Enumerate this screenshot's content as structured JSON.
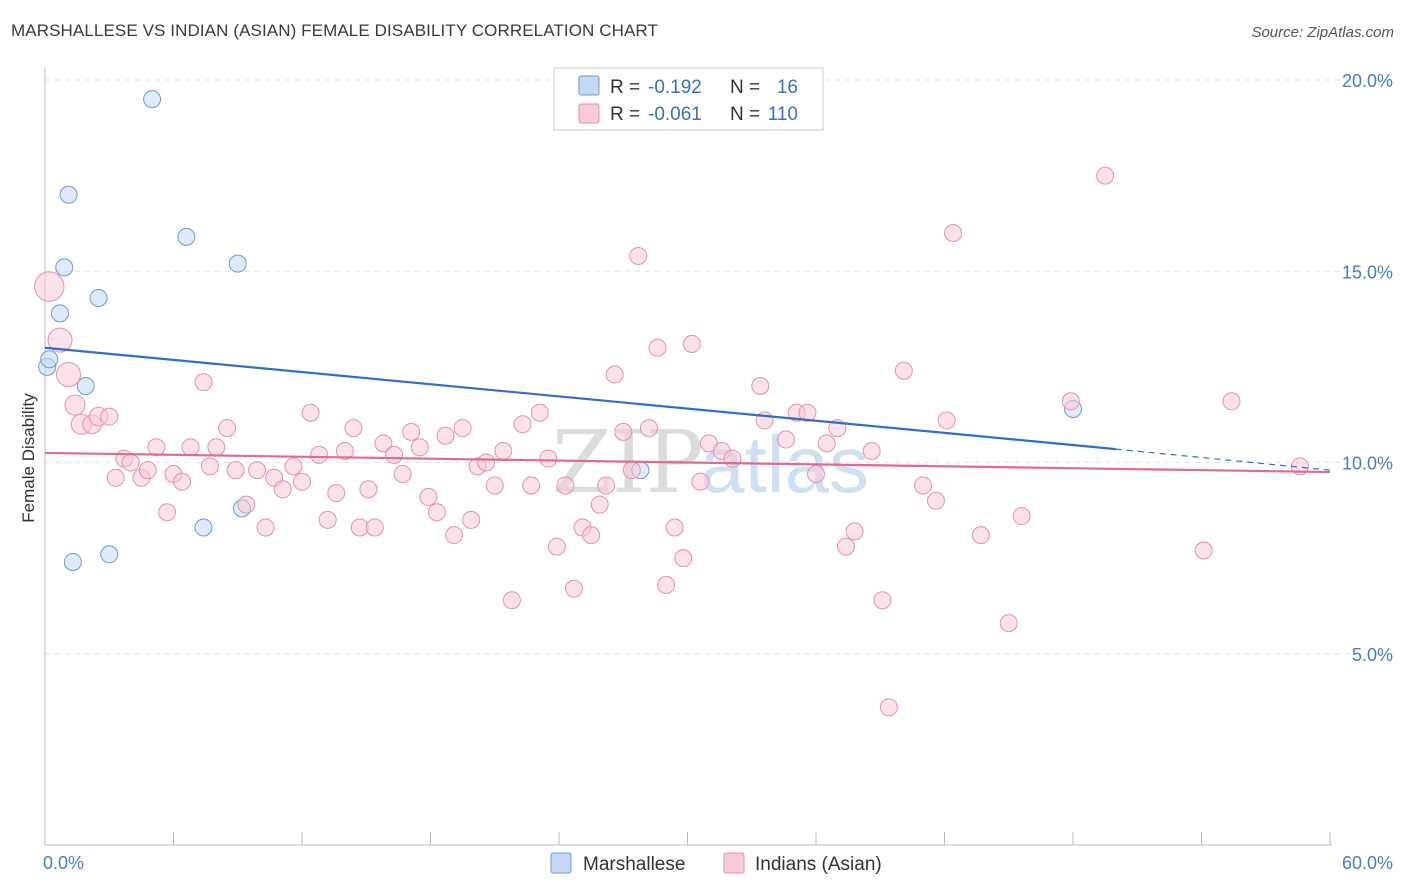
{
  "title": "MARSHALLESE VS INDIAN (ASIAN) FEMALE DISABILITY CORRELATION CHART",
  "source": "Source: ZipAtlas.com",
  "watermark": {
    "zip": "ZIP",
    "atlas": "atlas"
  },
  "colors": {
    "marshallese_fill": "#c4d8f3",
    "marshallese_stroke": "#6e9ad6",
    "marshallese_line": "#2e6fcc",
    "indian_fill": "#f8c9d7",
    "indian_stroke": "#e592ae",
    "indian_line": "#e06a95",
    "tick_label": "#4a7cc4",
    "grid": "#e2e2e2"
  },
  "legend": {
    "rows": [
      {
        "r_label": "R =",
        "r_value": "-0.192",
        "n_label": "N =",
        "n_value": "16"
      },
      {
        "r_label": "R =",
        "r_value": "-0.061",
        "n_label": "N =",
        "n_value": "110"
      }
    ]
  },
  "bottom_legend": [
    "Marshallese",
    "Indians (Asian)"
  ],
  "chart_data": {
    "type": "scatter",
    "title": "MARSHALLESE VS INDIAN (ASIAN) FEMALE DISABILITY CORRELATION CHART",
    "xlabel": "",
    "ylabel": "Female Disability",
    "xlim": [
      0,
      60
    ],
    "ylim": [
      0,
      21
    ],
    "x_tick_labels": [
      "0.0%",
      "60.0%"
    ],
    "y_ticks": [
      5,
      10,
      15,
      20
    ],
    "y_tick_labels": [
      "5.0%",
      "10.0%",
      "15.0%",
      "20.0%"
    ],
    "grid": true,
    "legend_position": "top-center",
    "series": [
      {
        "name": "Marshallese",
        "points": [
          [
            0.1,
            12.5,
            1
          ],
          [
            0.2,
            12.7,
            1
          ],
          [
            0.7,
            13.9,
            1
          ],
          [
            0.9,
            15.1,
            1
          ],
          [
            1.1,
            17.0,
            1
          ],
          [
            1.3,
            7.4,
            1
          ],
          [
            1.9,
            12.0,
            1
          ],
          [
            2.5,
            14.3,
            1
          ],
          [
            3.0,
            7.6,
            1
          ],
          [
            5.0,
            19.5,
            1
          ],
          [
            6.6,
            15.9,
            1
          ],
          [
            7.4,
            8.3,
            1
          ],
          [
            9.2,
            8.8,
            1
          ],
          [
            9.0,
            15.2,
            1
          ],
          [
            27.8,
            9.8,
            1
          ],
          [
            48.0,
            11.4,
            1
          ]
        ],
        "trend": {
          "x_start": 0,
          "y_start": 13.0,
          "x_end": 50,
          "y_end": 10.35,
          "dash_x_end": 60,
          "dash_y_end": 9.8
        }
      },
      {
        "name": "Indians (Asian)",
        "points": [
          [
            0.2,
            14.6,
            3
          ],
          [
            0.7,
            13.2,
            2
          ],
          [
            1.1,
            12.3,
            2
          ],
          [
            1.4,
            11.5,
            1.4
          ],
          [
            1.7,
            11.0,
            1.4
          ],
          [
            2.2,
            11.0,
            1.2
          ],
          [
            2.5,
            11.2,
            1.2
          ],
          [
            3.0,
            11.2,
            1
          ],
          [
            3.3,
            9.6,
            1
          ],
          [
            3.7,
            10.1,
            1
          ],
          [
            4.0,
            10.0,
            1
          ],
          [
            4.5,
            9.6,
            1
          ],
          [
            4.8,
            9.8,
            1
          ],
          [
            5.2,
            10.4,
            1
          ],
          [
            5.7,
            8.7,
            1
          ],
          [
            6.0,
            9.7,
            1
          ],
          [
            6.4,
            9.5,
            1
          ],
          [
            6.8,
            10.4,
            1
          ],
          [
            7.4,
            12.1,
            1
          ],
          [
            7.7,
            9.9,
            1
          ],
          [
            8.0,
            10.4,
            1
          ],
          [
            8.5,
            10.9,
            1
          ],
          [
            8.9,
            9.8,
            1
          ],
          [
            9.4,
            8.9,
            1
          ],
          [
            9.9,
            9.8,
            1
          ],
          [
            10.3,
            8.3,
            1
          ],
          [
            10.7,
            9.6,
            1
          ],
          [
            11.1,
            9.3,
            1
          ],
          [
            11.6,
            9.9,
            1
          ],
          [
            12.0,
            9.5,
            1
          ],
          [
            12.4,
            11.3,
            1
          ],
          [
            12.8,
            10.2,
            1
          ],
          [
            13.2,
            8.5,
            1
          ],
          [
            13.6,
            9.2,
            1
          ],
          [
            14.0,
            10.3,
            1
          ],
          [
            14.4,
            10.9,
            1
          ],
          [
            14.7,
            8.3,
            1
          ],
          [
            15.1,
            9.3,
            1
          ],
          [
            15.4,
            8.3,
            1
          ],
          [
            15.8,
            10.5,
            1
          ],
          [
            16.3,
            10.2,
            1
          ],
          [
            16.7,
            9.7,
            1
          ],
          [
            17.1,
            10.8,
            1
          ],
          [
            17.5,
            10.4,
            1
          ],
          [
            17.9,
            9.1,
            1
          ],
          [
            18.3,
            8.7,
            1
          ],
          [
            18.7,
            10.7,
            1
          ],
          [
            19.1,
            8.1,
            1
          ],
          [
            19.5,
            10.9,
            1
          ],
          [
            19.9,
            8.5,
            1
          ],
          [
            20.2,
            9.9,
            1
          ],
          [
            20.6,
            10.0,
            1
          ],
          [
            21.0,
            9.4,
            1
          ],
          [
            21.4,
            10.3,
            1
          ],
          [
            21.8,
            6.4,
            1
          ],
          [
            22.3,
            11.0,
            1
          ],
          [
            22.7,
            9.4,
            1
          ],
          [
            23.1,
            11.3,
            1
          ],
          [
            23.5,
            10.1,
            1
          ],
          [
            23.9,
            7.8,
            1
          ],
          [
            24.3,
            9.4,
            1
          ],
          [
            24.7,
            6.7,
            1
          ],
          [
            25.1,
            8.3,
            1
          ],
          [
            25.5,
            8.1,
            1
          ],
          [
            25.9,
            8.9,
            1
          ],
          [
            26.2,
            9.4,
            1
          ],
          [
            26.6,
            12.3,
            1
          ],
          [
            27.0,
            10.8,
            1
          ],
          [
            27.4,
            9.8,
            1
          ],
          [
            27.7,
            15.4,
            1
          ],
          [
            28.2,
            10.9,
            1
          ],
          [
            28.6,
            13.0,
            1
          ],
          [
            29.0,
            6.8,
            1
          ],
          [
            29.4,
            8.3,
            1
          ],
          [
            29.8,
            7.5,
            1
          ],
          [
            30.2,
            13.1,
            1
          ],
          [
            30.6,
            9.5,
            1
          ],
          [
            31.0,
            10.5,
            1
          ],
          [
            31.6,
            10.3,
            1
          ],
          [
            32.1,
            10.1,
            1
          ],
          [
            33.4,
            12.0,
            1
          ],
          [
            33.6,
            11.1,
            1
          ],
          [
            34.6,
            10.6,
            1
          ],
          [
            35.1,
            11.3,
            1
          ],
          [
            35.6,
            11.3,
            1
          ],
          [
            36.0,
            9.7,
            1
          ],
          [
            36.5,
            10.5,
            1
          ],
          [
            37.0,
            10.9,
            1
          ],
          [
            37.4,
            7.8,
            1
          ],
          [
            37.8,
            8.2,
            1
          ],
          [
            38.6,
            10.3,
            1
          ],
          [
            39.1,
            6.4,
            1
          ],
          [
            39.4,
            3.6,
            1
          ],
          [
            40.1,
            12.4,
            1
          ],
          [
            41.0,
            9.4,
            1
          ],
          [
            41.6,
            9.0,
            1
          ],
          [
            42.1,
            11.1,
            1
          ],
          [
            42.4,
            16.0,
            1
          ],
          [
            43.7,
            8.1,
            1
          ],
          [
            45.0,
            5.8,
            1
          ],
          [
            45.6,
            8.6,
            1
          ],
          [
            47.9,
            11.6,
            1
          ],
          [
            49.5,
            17.5,
            1
          ],
          [
            54.1,
            7.7,
            1
          ],
          [
            55.4,
            11.6,
            1
          ],
          [
            58.6,
            9.9,
            1
          ]
        ],
        "trend": {
          "x_start": 0,
          "y_start": 10.25,
          "x_end": 60,
          "y_end": 9.75
        }
      }
    ]
  }
}
